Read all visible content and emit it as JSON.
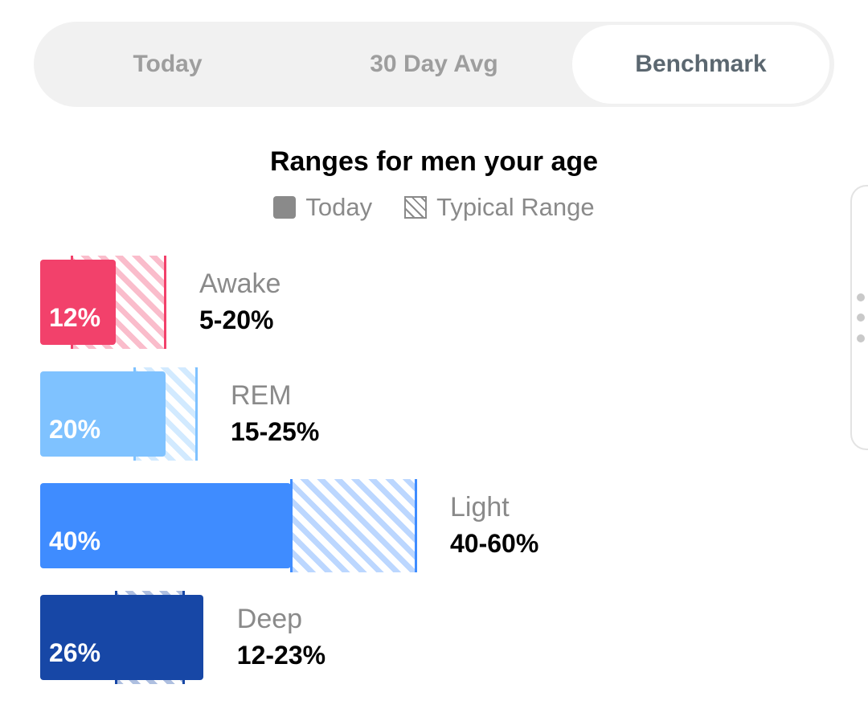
{
  "tabs": [
    {
      "label": "Today",
      "selected": false
    },
    {
      "label": "30 Day Avg",
      "selected": false
    },
    {
      "label": "Benchmark",
      "selected": true
    }
  ],
  "title": "Ranges for men your age",
  "legend": {
    "today": "Today",
    "typical": "Typical Range"
  },
  "chart_data": {
    "type": "bar",
    "title": "Ranges for men your age",
    "series": [
      {
        "name": "Today",
        "values": [
          12,
          20,
          40,
          26
        ]
      },
      {
        "name": "Typical Range",
        "values": [
          "5-20%",
          "15-25%",
          "40-60%",
          "12-23%"
        ]
      }
    ],
    "categories": [
      "Awake",
      "REM",
      "Light",
      "Deep"
    ],
    "stages": [
      {
        "name": "Awake",
        "today": 12,
        "today_label": "12%",
        "range_low": 5,
        "range_high": 20,
        "range_label": "5-20%",
        "color": "#f2416b"
      },
      {
        "name": "REM",
        "today": 20,
        "today_label": "20%",
        "range_low": 15,
        "range_high": 25,
        "range_label": "15-25%",
        "color": "#7fc2ff"
      },
      {
        "name": "Light",
        "today": 40,
        "today_label": "40%",
        "range_low": 40,
        "range_high": 60,
        "range_label": "40-60%",
        "color": "#3f8cff"
      },
      {
        "name": "Deep",
        "today": 26,
        "today_label": "26%",
        "range_low": 12,
        "range_high": 23,
        "range_label": "12-23%",
        "color": "#1747a6"
      }
    ]
  }
}
